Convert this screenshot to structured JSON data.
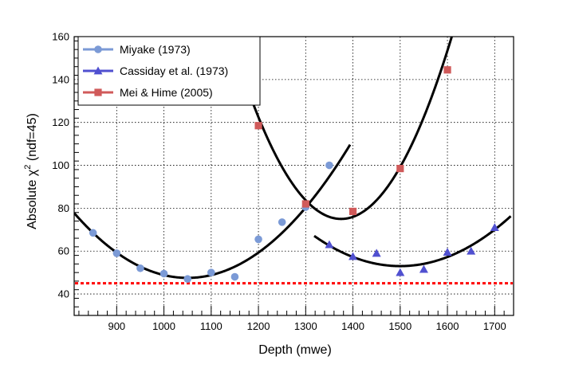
{
  "chart_data": {
    "type": "scatter",
    "title": "",
    "xlabel": "Depth (mwe)",
    "ylabel_main": "Absolute χ",
    "ylabel_sup": "2",
    "ylabel_rest": " (ndf=45)",
    "xlim": [
      810,
      1740
    ],
    "ylim": [
      30,
      160
    ],
    "xticks": [
      900,
      1000,
      1100,
      1200,
      1300,
      1400,
      1500,
      1600,
      1700
    ],
    "yticks": [
      40,
      60,
      80,
      100,
      120,
      140,
      160
    ],
    "grid": true,
    "legend_position": "top-left",
    "reference_line": {
      "y": 45,
      "color": "#ff0000",
      "style": "dotted"
    },
    "series": [
      {
        "name": "Miyake (1973)",
        "marker": "circle",
        "color": "#7b9ad6",
        "x": [
          850,
          900,
          950,
          1000,
          1050,
          1100,
          1150,
          1200,
          1250,
          1300,
          1350
        ],
        "y": [
          68.5,
          59,
          52,
          49.5,
          47,
          50,
          48,
          65.5,
          73.5,
          80.5,
          100
        ]
      },
      {
        "name": "Cassiday et al. (1973)",
        "marker": "triangle",
        "color": "#5050d0",
        "x": [
          1350,
          1400,
          1450,
          1500,
          1550,
          1600,
          1650,
          1700
        ],
        "y": [
          63,
          57.5,
          59,
          50,
          51.5,
          59.5,
          60,
          71
        ]
      },
      {
        "name": "Mei & Hime (2005)",
        "marker": "square",
        "color": "#d05a5a",
        "x": [
          1200,
          1300,
          1400,
          1500,
          1600
        ],
        "y": [
          118.5,
          82,
          78.5,
          98.5,
          144.5
        ]
      }
    ],
    "fits": [
      {
        "fit_for": "Miyake (1973)",
        "x_from": 810,
        "x_to": 1395,
        "vertex_x": 1050,
        "vertex_y": 47.5,
        "curvature": 0.000525
      },
      {
        "fit_for": "Cassiday et al. (1973)",
        "x_from": 1318,
        "x_to": 1735,
        "vertex_x": 1500,
        "vertex_y": 53,
        "curvature": 0.000425
      },
      {
        "fit_for": "Mei & Hime (2005)",
        "x_from": 1140,
        "x_to": 1620,
        "vertex_x": 1375,
        "vertex_y": 75,
        "curvature": 0.00155
      }
    ]
  }
}
